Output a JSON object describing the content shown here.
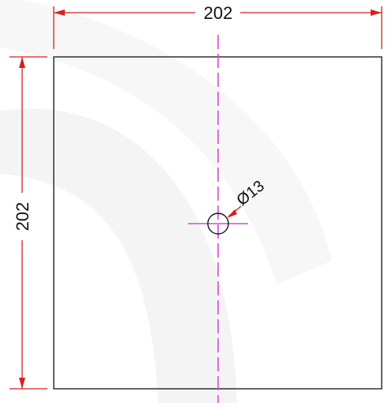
{
  "drawing": {
    "width_dimension": "202",
    "height_dimension": "202",
    "hole_diameter": "Ø13"
  },
  "colors": {
    "outline": "#111111",
    "dimension": "#d61f1f",
    "centerline": "#d64ad6",
    "background": "#ffffff",
    "watermark": "#f2f2f2"
  }
}
